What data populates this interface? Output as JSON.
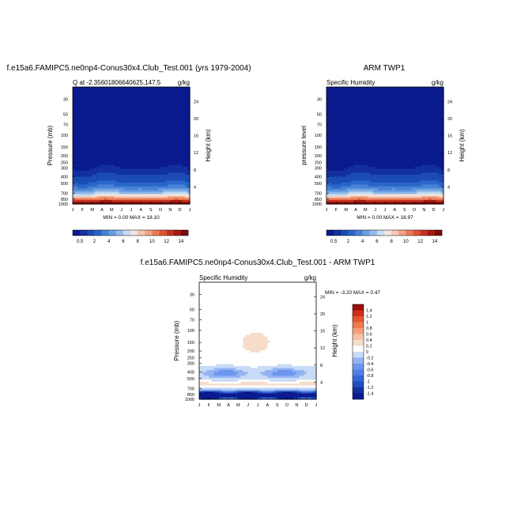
{
  "panels": [
    {
      "title": "f.e15a6.FAMIPC5.ne0np4-Conus30x4.Club_Test.001 (yrs 1979-2004)",
      "left_label": "Q at -2.35601806640625,147.5",
      "right_label": "g/kg",
      "ylabel": "Pressure (mb)",
      "ylabel_right": "Height (km)",
      "minmax": "MIN =   0.00 MAX =  18.10"
    },
    {
      "title": "ARM TWP1",
      "left_label": "Specific Humidity",
      "right_label": "g/kg",
      "ylabel": "pressure level",
      "ylabel_right": "Height (km)",
      "minmax": "MIN =   0.00 MAX =  18.97"
    },
    {
      "title": "f.e15a6.FAMIPC5.ne0np4-Conus30x4.Club_Test.001 - ARM TWP1",
      "left_label": "Specific Humidity",
      "right_label": "g/kg",
      "ylabel": "Pressure (mb)",
      "ylabel_right": "Height (km)",
      "minmax": "MIN =  -3.20 MAX =   0.47"
    }
  ],
  "chart_data": [
    {
      "type": "heatmap",
      "subtype": "filled-contour",
      "title": "f.e15a6.FAMIPC5.ne0np4-Conus30x4.Club_Test.001 (yrs 1979-2004)",
      "variable": "Q at -2.35601806640625,147.5",
      "units": "g/kg",
      "x": [
        "J",
        "F",
        "M",
        "A",
        "M",
        "J",
        "J",
        "A",
        "S",
        "O",
        "N",
        "D",
        "J"
      ],
      "y_pressure_ticks": [
        30,
        50,
        70,
        100,
        150,
        200,
        250,
        300,
        400,
        500,
        700,
        850,
        1000
      ],
      "y_height_ticks": [
        24,
        20,
        16,
        12,
        8,
        4
      ],
      "ylim": [
        1000,
        20
      ],
      "log_y": true,
      "contour_levels": [
        0.5,
        1,
        2,
        3,
        4,
        5,
        6,
        7,
        8,
        9,
        10,
        11,
        12,
        13,
        14
      ],
      "colorbar_labels": [
        "0.5",
        "2",
        "4",
        "6",
        "8",
        "10",
        "12",
        "14"
      ],
      "min": 0.0,
      "max": 18.1
    },
    {
      "type": "heatmap",
      "subtype": "filled-contour",
      "title": "ARM TWP1",
      "variable": "Specific Humidity",
      "units": "g/kg",
      "x": [
        "J",
        "F",
        "M",
        "A",
        "M",
        "J",
        "J",
        "A",
        "S",
        "O",
        "N",
        "D",
        "J"
      ],
      "y_pressure_ticks": [
        30,
        50,
        70,
        100,
        150,
        200,
        250,
        300,
        400,
        500,
        700,
        850,
        1000
      ],
      "y_height_ticks": [
        24,
        20,
        16,
        12,
        8,
        4
      ],
      "ylim": [
        1000,
        20
      ],
      "log_y": true,
      "contour_levels": [
        0.5,
        1,
        2,
        3,
        4,
        5,
        6,
        7,
        8,
        9,
        10,
        11,
        12,
        13,
        14
      ],
      "colorbar_labels": [
        "0.5",
        "2",
        "4",
        "6",
        "8",
        "10",
        "12",
        "14"
      ],
      "min": 0.0,
      "max": 18.97
    },
    {
      "type": "heatmap",
      "subtype": "filled-contour",
      "title": "f.e15a6.FAMIPC5.ne0np4-Conus30x4.Club_Test.001 - ARM TWP1",
      "variable": "Specific Humidity",
      "units": "g/kg",
      "x": [
        "J",
        "F",
        "M",
        "A",
        "M",
        "J",
        "J",
        "A",
        "S",
        "O",
        "N",
        "D",
        "J"
      ],
      "y_pressure_ticks": [
        30,
        50,
        70,
        100,
        150,
        200,
        250,
        300,
        400,
        500,
        700,
        850,
        1000
      ],
      "y_height_ticks": [
        24,
        20,
        16,
        12,
        8,
        4
      ],
      "ylim": [
        1000,
        20
      ],
      "log_y": true,
      "contour_levels": [
        -1.4,
        -1.2,
        -1,
        -0.8,
        -0.6,
        -0.4,
        -0.2,
        0,
        0.2,
        0.4,
        0.6,
        0.8,
        1,
        1.2,
        1.4
      ],
      "colorbar_labels": [
        "1.4",
        "1.2",
        "1",
        "0.8",
        "0.6",
        "0.4",
        "0.2",
        "0",
        "-0.2",
        "-0.4",
        "-0.6",
        "-0.8",
        "-1",
        "-1.2",
        "-1.4"
      ],
      "min": -3.2,
      "max": 0.47
    }
  ],
  "colors": {
    "seq": [
      "#0a1a8f",
      "#12309e",
      "#1b4cb4",
      "#2b66c8",
      "#4682d6",
      "#6b9ee0",
      "#94bbe9",
      "#c6dcf2",
      "#f3e4dc",
      "#f5c7b2",
      "#f2a283",
      "#ea7a56",
      "#de5535",
      "#c93220",
      "#a61a12",
      "#7a0c08"
    ],
    "diff": [
      "#0a1a8f",
      "#12309e",
      "#1f4fbf",
      "#3466d8",
      "#4f7ee6",
      "#6e96ee",
      "#93b3f3",
      "#c7dbf6",
      "#ffffff",
      "#f7dccb",
      "#f6c1a4",
      "#f4a17b",
      "#ef7a50",
      "#e45430",
      "#cf2f18",
      "#9a0c0a"
    ]
  }
}
